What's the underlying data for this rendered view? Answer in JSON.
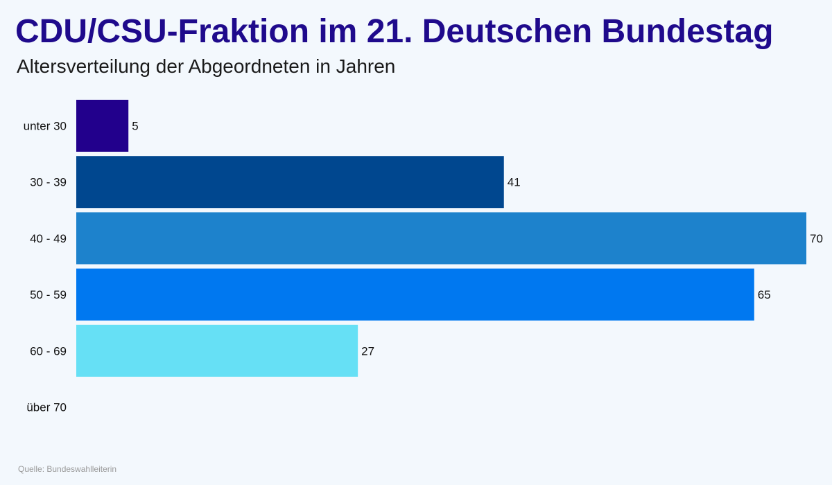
{
  "header": {
    "title": "CDU/CSU-Fraktion im 21. Deutschen Bundestag",
    "subtitle": "Altersverteilung der Abgeordneten in Jahren"
  },
  "footer": {
    "source": "Quelle: Bundeswahlleiterin"
  },
  "chart_data": {
    "type": "bar",
    "orientation": "horizontal",
    "title": "CDU/CSU-Fraktion im 21. Deutschen Bundestag",
    "subtitle": "Altersverteilung der Abgeordneten in Jahren",
    "categories": [
      "unter 30",
      "30 - 39",
      "40 - 49",
      "50 - 59",
      "60 - 69",
      "über 70"
    ],
    "values": [
      5,
      41,
      70,
      65,
      27,
      0
    ],
    "value_labels": [
      "5",
      "41",
      "70",
      "65",
      "27",
      ""
    ],
    "colors": [
      "#22008c",
      "#00478f",
      "#1d82cc",
      "#0078f0",
      "#66e0f5",
      "#66e0f5"
    ],
    "xlim": [
      0,
      70
    ],
    "grid": false,
    "legend": "none"
  }
}
